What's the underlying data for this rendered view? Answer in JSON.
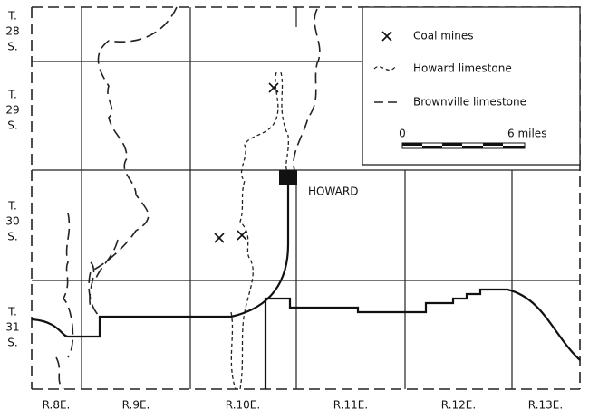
{
  "townships": [
    [
      "T.",
      "28",
      "S."
    ],
    [
      "T.",
      "29",
      "S."
    ],
    [
      "T.",
      "30",
      "S."
    ],
    [
      "T.",
      "31",
      "S."
    ]
  ],
  "ranges": [
    "R.8E.",
    "R.9E.",
    "R.10E.",
    "R.11E.",
    "R.12E.",
    "R.13E."
  ],
  "legend": [
    "Coal mines",
    "Howard limestone",
    "Brownville limestone"
  ],
  "scale": {
    "start": "0",
    "end": "6 miles"
  },
  "town": "HOWARD"
}
